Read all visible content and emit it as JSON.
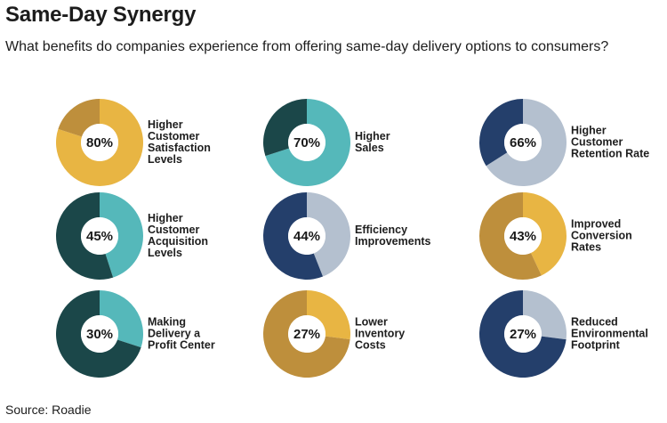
{
  "title": "Same-Day Synergy",
  "subtitle": "What benefits do companies experience from offering same-day delivery options to consumers?",
  "source": "Source: Roadie",
  "chart_data": {
    "type": "pie",
    "title": "Same-Day Synergy",
    "subtitle": "What benefits do companies experience from offering same-day delivery options to consumers?",
    "panels": [
      {
        "label": "Higher\nCustomer\nSatisfaction\nLevels",
        "value": 80,
        "display": "80%",
        "color": "#E8B543",
        "rest_color": "#BE8F3C"
      },
      {
        "label": "Higher\nSales",
        "value": 70,
        "display": "70%",
        "color": "#55B8BA",
        "rest_color": "#1B4749"
      },
      {
        "label": "Higher\nCustomer\nRetention Rate",
        "value": 66,
        "display": "66%",
        "color": "#B4C0CF",
        "rest_color": "#243F6B"
      },
      {
        "label": "Higher\nCustomer\nAcquisition\nLevels",
        "value": 45,
        "display": "45%",
        "color": "#55B8BA",
        "rest_color": "#1B4749"
      },
      {
        "label": "Efficiency\nImprovements",
        "value": 44,
        "display": "44%",
        "color": "#B4C0CF",
        "rest_color": "#243F6B"
      },
      {
        "label": "Improved\nConversion\nRates",
        "value": 43,
        "display": "43%",
        "color": "#E8B543",
        "rest_color": "#BE8F3C"
      },
      {
        "label": "Making\nDelivery a\nProfit Center",
        "value": 30,
        "display": "30%",
        "color": "#55B8BA",
        "rest_color": "#1B4749"
      },
      {
        "label": "Lower\nInventory\nCosts",
        "value": 27,
        "display": "27%",
        "color": "#E8B543",
        "rest_color": "#BE8F3C"
      },
      {
        "label": "Reduced\nEnvironmental\nFootprint",
        "value": 27,
        "display": "27%",
        "color": "#B4C0CF",
        "rest_color": "#243F6B"
      }
    ]
  }
}
